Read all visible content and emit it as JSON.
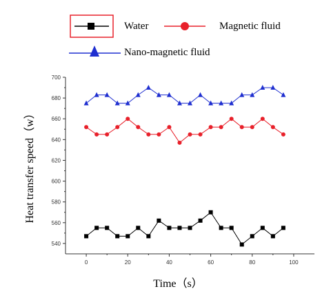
{
  "chart_data": {
    "type": "line",
    "xlabel": "Time（s）",
    "ylabel": "Heat transfer speed（w）",
    "xlim": [
      -10,
      110
    ],
    "ylim": [
      530,
      700
    ],
    "x_ticks": [
      "0",
      "20",
      "40",
      "60",
      "80",
      "100"
    ],
    "y_ticks": [
      "540",
      "560",
      "580",
      "600",
      "620",
      "640",
      "660",
      "680",
      "700"
    ],
    "x": [
      0,
      5,
      10,
      15,
      20,
      25,
      30,
      35,
      40,
      45,
      50,
      55,
      60,
      65,
      70,
      75,
      80,
      85,
      90,
      95
    ],
    "series": [
      {
        "name": "Water",
        "marker": "square",
        "color": "#000000",
        "values": [
          547,
          555,
          555,
          547,
          547,
          555,
          547,
          562,
          555,
          555,
          555,
          562,
          570,
          555,
          555,
          539,
          547,
          555,
          547,
          555
        ]
      },
      {
        "name": "Magnetic fluid",
        "marker": "circle",
        "color": "#e8202a",
        "values": [
          652,
          645,
          645,
          652,
          660,
          652,
          645,
          645,
          652,
          637,
          645,
          645,
          652,
          652,
          660,
          652,
          652,
          660,
          652,
          645
        ]
      },
      {
        "name": "Nano-magnetic fluid",
        "marker": "triangle",
        "color": "#1f2fd0",
        "values": [
          675,
          683,
          683,
          675,
          675,
          683,
          690,
          683,
          683,
          675,
          675,
          683,
          675,
          675,
          675,
          683,
          683,
          690,
          690,
          683
        ]
      }
    ],
    "legend_position": "top"
  }
}
